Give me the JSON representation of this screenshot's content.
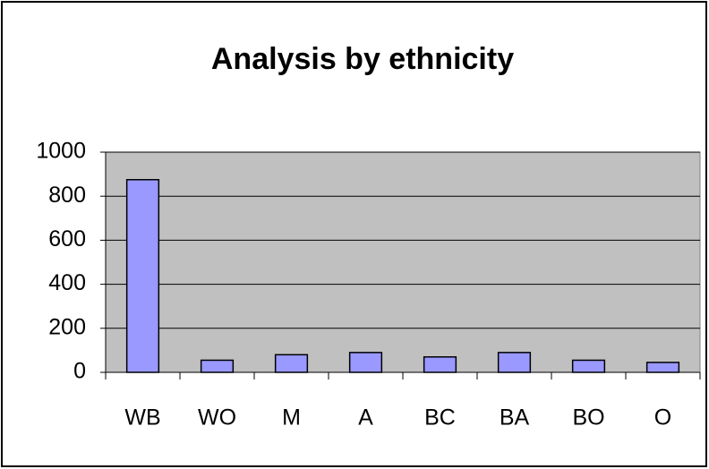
{
  "chart_data": {
    "type": "bar",
    "title": "Analysis by ethnicity",
    "categories": [
      "WB",
      "WO",
      "M",
      "A",
      "BC",
      "BA",
      "BO",
      "O"
    ],
    "values": [
      875,
      55,
      80,
      90,
      70,
      90,
      55,
      45
    ],
    "color": "#9999ff",
    "ylim": [
      0,
      1000
    ],
    "yticks": [
      0,
      200,
      400,
      600,
      800,
      1000
    ],
    "grid": true
  }
}
